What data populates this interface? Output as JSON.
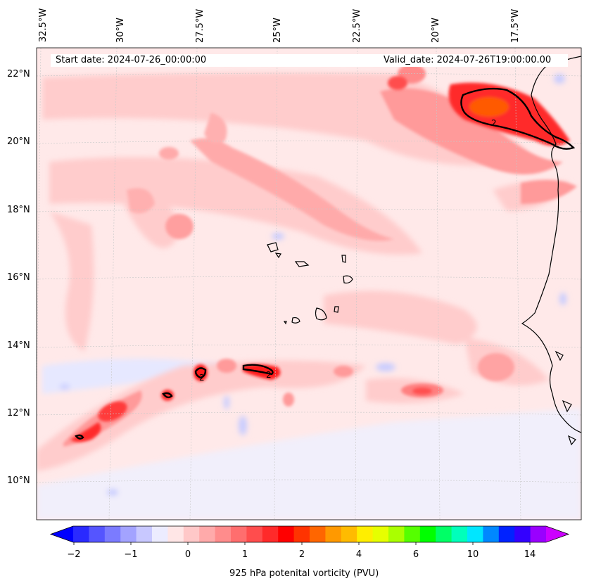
{
  "map": {
    "start_date": "Start date: 2024-07-26_00:00:00",
    "valid_date": "Valid_date: 2024-07-26T19:00:00.00",
    "lon_labels": [
      "32.5°W",
      "30°W",
      "27.5°W",
      "25°W",
      "22.5°W",
      "20°W",
      "17.5°W"
    ],
    "lat_labels": [
      "22°N",
      "20°N",
      "18°N",
      "16°N",
      "14°N",
      "12°N",
      "10°N"
    ],
    "contour_labels": [
      "2",
      "2",
      "2"
    ],
    "variable": "925 hPa potenital vorticity (PVU)"
  },
  "colorbar": {
    "tick_labels": [
      "−2",
      "−1",
      "0",
      "1",
      "2",
      "4",
      "6",
      "10",
      "14"
    ],
    "colors": [
      "#0000ff",
      "#2a2aff",
      "#5555ff",
      "#7b7bff",
      "#a3a3ff",
      "#c8c8ff",
      "#ececff",
      "#ffe6e6",
      "#ffc8c8",
      "#ffaaaa",
      "#ff8c8c",
      "#ff6e6e",
      "#ff4d4d",
      "#ff2a2a",
      "#ff0000",
      "#ff3300",
      "#ff6600",
      "#ff9900",
      "#ffbb00",
      "#ffee00",
      "#e6ff00",
      "#aaff00",
      "#55ff00",
      "#00ff00",
      "#00ff66",
      "#00ffbb",
      "#00e6ff",
      "#0088ff",
      "#0022ff",
      "#3300ff",
      "#9900ff",
      "#cc00ff"
    ]
  },
  "colors": {
    "background_field": "#ffe9e9",
    "weak_positive": "#ffc6c6",
    "moderate_positive": "#ff9a9a",
    "strong_positive": "#ff2020",
    "very_strong": "#ff5500",
    "negative": "#dde0ff",
    "coast": "#000000"
  }
}
